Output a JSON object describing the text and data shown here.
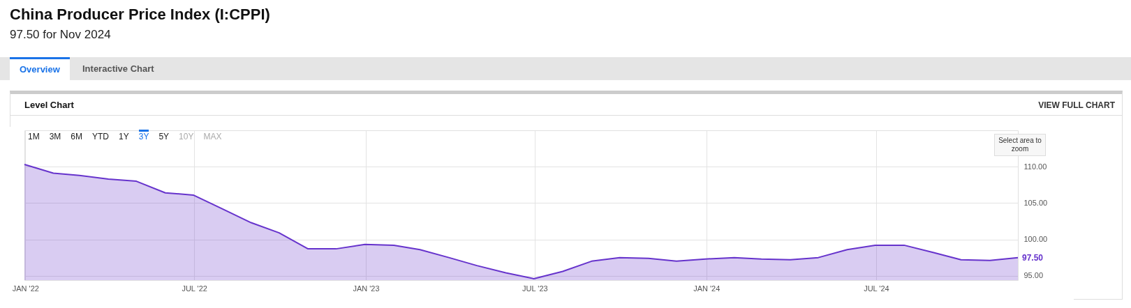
{
  "chart_data": {
    "type": "area",
    "title": "China Producer Price Index (I:CPPI)",
    "subtitle": "97.50 for Nov 2024",
    "annotations": [
      "Overview",
      "Interactive Chart",
      "Level Chart",
      "VIEW FULL CHART",
      "1M",
      "3M",
      "6M",
      "YTD",
      "1Y",
      "3Y",
      "5Y",
      "10Y",
      "MAX",
      "Select area to zoom"
    ],
    "x": [
      "2021-12-31",
      "2022-01-31",
      "2022-02-28",
      "2022-03-31",
      "2022-04-30",
      "2022-05-31",
      "2022-06-30",
      "2022-07-31",
      "2022-08-31",
      "2022-09-30",
      "2022-10-31",
      "2022-11-30",
      "2022-12-31",
      "2023-01-31",
      "2023-02-28",
      "2023-03-31",
      "2023-04-30",
      "2023-05-31",
      "2023-06-30",
      "2023-07-31",
      "2023-08-31",
      "2023-09-30",
      "2023-10-31",
      "2023-11-30",
      "2023-12-31",
      "2024-01-31",
      "2024-02-29",
      "2024-03-31",
      "2024-04-30",
      "2024-05-31",
      "2024-06-30",
      "2024-07-31",
      "2024-08-31",
      "2024-09-30",
      "2024-10-31",
      "2024-11-30"
    ],
    "series": [
      {
        "color": "#6633cc",
        "values": [
          110.3,
          109.1,
          108.8,
          108.3,
          108.0,
          106.4,
          106.1,
          104.2,
          102.3,
          100.9,
          98.7,
          98.7,
          99.3,
          99.2,
          98.6,
          97.5,
          96.4,
          95.4,
          94.6,
          95.6,
          97.0,
          97.5,
          97.4,
          97.0,
          97.3,
          97.5,
          97.3,
          97.2,
          97.5,
          98.6,
          99.2,
          99.2,
          98.2,
          97.2,
          97.1,
          97.5
        ],
        "value_labels": [
          null,
          null,
          null,
          null,
          null,
          null,
          null,
          null,
          null,
          null,
          null,
          null,
          null,
          null,
          null,
          null,
          null,
          null,
          null,
          null,
          null,
          null,
          null,
          null,
          null,
          null,
          null,
          null,
          null,
          null,
          null,
          null,
          null,
          null,
          null,
          "97.50"
        ]
      }
    ],
    "xlim": [
      "2021-12-31",
      "2024-11-30"
    ],
    "xticks": [
      {
        "value": "2022-01-01",
        "label": "JAN '22"
      },
      {
        "value": "2022-07-01",
        "label": "JUL '22"
      },
      {
        "value": "2023-01-01",
        "label": "JAN '23"
      },
      {
        "value": "2023-07-01",
        "label": "JUL '23"
      },
      {
        "value": "2024-01-01",
        "label": "JAN '24"
      },
      {
        "value": "2024-07-01",
        "label": "JUL '24"
      }
    ],
    "ylim": [
      94.4,
      115
    ],
    "yticks": [
      {
        "value": 95,
        "label": "95.00"
      },
      {
        "value": 100,
        "label": "100.00"
      },
      {
        "value": 105,
        "label": "105.00"
      },
      {
        "value": 110,
        "label": "110.00"
      }
    ],
    "grid": true
  }
}
